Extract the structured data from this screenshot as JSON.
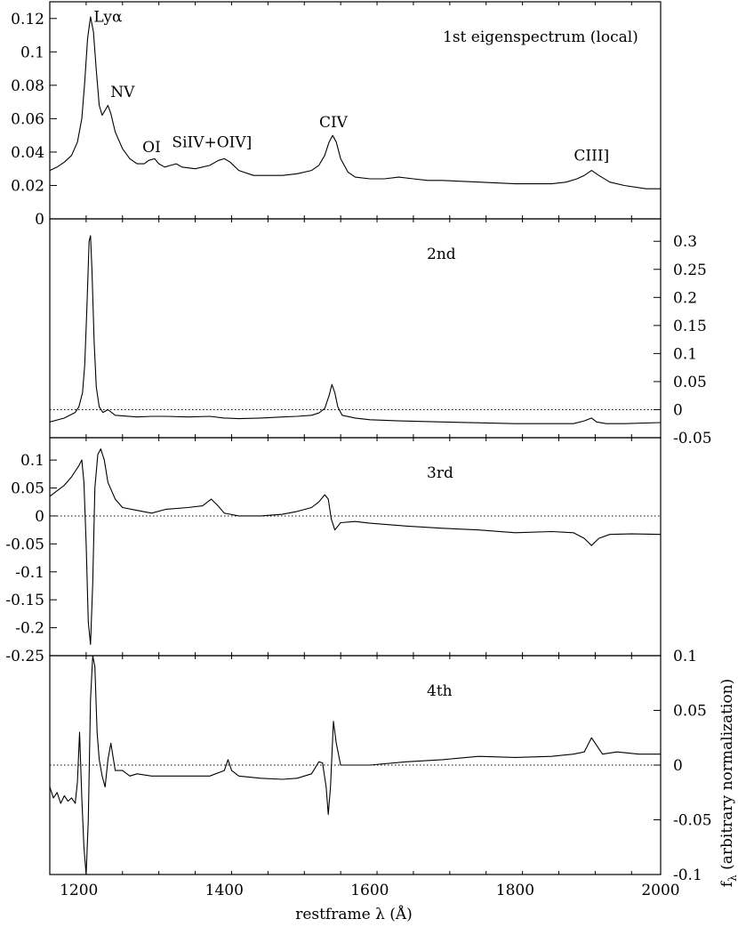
{
  "chart_data": {
    "type": "line",
    "xlabel": "restframe λ (Å)",
    "ylabel": "f",
    "ylabel_subscript": "λ",
    "ylabel_suffix": " (arbitrary normalization)",
    "xlim": [
      1160,
      2000
    ],
    "xticks": [
      {
        "value": 1200,
        "label": "1200"
      },
      {
        "value": 1400,
        "label": "1400"
      },
      {
        "value": 1600,
        "label": "1600"
      },
      {
        "value": 1800,
        "label": "1800"
      },
      {
        "value": 2000,
        "label": "2000"
      }
    ],
    "panels": [
      {
        "label": "1st eigenspectrum (local)",
        "axis_side": "left",
        "ylim": [
          0,
          0.13
        ],
        "zero_line": false,
        "yticks": [
          {
            "value": 0,
            "label": "0"
          },
          {
            "value": 0.02,
            "label": "0.02"
          },
          {
            "value": 0.04,
            "label": "0.04"
          },
          {
            "value": 0.06,
            "label": "0.06"
          },
          {
            "value": 0.08,
            "label": "0.08"
          },
          {
            "value": 0.1,
            "label": "0.1"
          },
          {
            "value": 0.12,
            "label": "0.12"
          }
        ],
        "annotations": [
          {
            "text": "Lyα",
            "x": 1240,
            "y": 0.118
          },
          {
            "text": "NV",
            "x": 1260,
            "y": 0.073
          },
          {
            "text": "OI",
            "x": 1300,
            "y": 0.04
          },
          {
            "text": "SiIV+OIV]",
            "x": 1383,
            "y": 0.043
          },
          {
            "text": "CIV",
            "x": 1550,
            "y": 0.055
          },
          {
            "text": "CIII]",
            "x": 1905,
            "y": 0.035
          }
        ],
        "x": [
          1160,
          1170,
          1180,
          1190,
          1198,
          1204,
          1208,
          1212,
          1216,
          1220,
          1224,
          1228,
          1232,
          1236,
          1240,
          1244,
          1250,
          1260,
          1270,
          1280,
          1290,
          1296,
          1304,
          1310,
          1318,
          1326,
          1334,
          1342,
          1360,
          1380,
          1392,
          1400,
          1408,
          1420,
          1440,
          1460,
          1480,
          1500,
          1520,
          1530,
          1538,
          1544,
          1549,
          1554,
          1560,
          1570,
          1580,
          1600,
          1620,
          1640,
          1660,
          1680,
          1700,
          1750,
          1800,
          1850,
          1870,
          1885,
          1895,
          1905,
          1915,
          1930,
          1950,
          1980,
          2000
        ],
        "values": [
          0.029,
          0.031,
          0.034,
          0.038,
          0.046,
          0.06,
          0.082,
          0.108,
          0.121,
          0.112,
          0.089,
          0.068,
          0.062,
          0.065,
          0.068,
          0.063,
          0.052,
          0.042,
          0.036,
          0.033,
          0.033,
          0.035,
          0.036,
          0.033,
          0.031,
          0.032,
          0.033,
          0.031,
          0.03,
          0.032,
          0.035,
          0.036,
          0.034,
          0.029,
          0.026,
          0.026,
          0.026,
          0.027,
          0.029,
          0.032,
          0.038,
          0.046,
          0.05,
          0.046,
          0.036,
          0.028,
          0.025,
          0.024,
          0.024,
          0.025,
          0.024,
          0.023,
          0.023,
          0.022,
          0.021,
          0.021,
          0.022,
          0.024,
          0.026,
          0.029,
          0.026,
          0.022,
          0.02,
          0.018,
          0.018
        ]
      },
      {
        "label": "2nd",
        "axis_side": "right",
        "ylim": [
          -0.05,
          0.34
        ],
        "zero_line": true,
        "yticks": [
          {
            "value": -0.05,
            "label": "-0.05"
          },
          {
            "value": 0,
            "label": "0"
          },
          {
            "value": 0.05,
            "label": "0.05"
          },
          {
            "value": 0.1,
            "label": "0.1"
          },
          {
            "value": 0.15,
            "label": "0.15"
          },
          {
            "value": 0.2,
            "label": "0.2"
          },
          {
            "value": 0.25,
            "label": "0.25"
          },
          {
            "value": 0.3,
            "label": "0.3"
          }
        ],
        "x": [
          1160,
          1180,
          1195,
          1200,
          1205,
          1208,
          1211,
          1214,
          1216,
          1218,
          1221,
          1224,
          1228,
          1233,
          1240,
          1250,
          1280,
          1300,
          1320,
          1350,
          1380,
          1400,
          1420,
          1450,
          1480,
          1500,
          1520,
          1530,
          1538,
          1544,
          1548,
          1552,
          1556,
          1562,
          1580,
          1600,
          1640,
          1700,
          1800,
          1880,
          1895,
          1905,
          1912,
          1925,
          1950,
          2000
        ],
        "values": [
          -0.022,
          -0.015,
          -0.005,
          0.005,
          0.03,
          0.08,
          0.18,
          0.3,
          0.31,
          0.25,
          0.12,
          0.04,
          0.005,
          -0.005,
          0,
          -0.01,
          -0.013,
          -0.012,
          -0.012,
          -0.013,
          -0.012,
          -0.015,
          -0.016,
          -0.015,
          -0.013,
          -0.012,
          -0.01,
          -0.006,
          0.002,
          0.025,
          0.045,
          0.03,
          0.005,
          -0.01,
          -0.015,
          -0.018,
          -0.02,
          -0.022,
          -0.025,
          -0.025,
          -0.02,
          -0.015,
          -0.022,
          -0.025,
          -0.025,
          -0.023
        ]
      },
      {
        "label": "3rd",
        "axis_side": "left",
        "ylim": [
          -0.25,
          0.14
        ],
        "zero_line": true,
        "yticks": [
          {
            "value": -0.25,
            "label": "-0.25"
          },
          {
            "value": -0.2,
            "label": "-0.2"
          },
          {
            "value": -0.15,
            "label": "-0.15"
          },
          {
            "value": -0.1,
            "label": "-0.1"
          },
          {
            "value": -0.05,
            "label": "-0.05"
          },
          {
            "value": 0,
            "label": "0"
          },
          {
            "value": 0.05,
            "label": "0.05"
          },
          {
            "value": 0.1,
            "label": "0.1"
          }
        ],
        "x": [
          1160,
          1170,
          1180,
          1190,
          1200,
          1204,
          1207,
          1210,
          1213,
          1216,
          1219,
          1222,
          1226,
          1230,
          1235,
          1240,
          1250,
          1260,
          1280,
          1300,
          1320,
          1350,
          1370,
          1382,
          1390,
          1400,
          1420,
          1450,
          1480,
          1500,
          1520,
          1530,
          1538,
          1543,
          1547,
          1552,
          1560,
          1580,
          1600,
          1650,
          1700,
          1750,
          1800,
          1850,
          1880,
          1895,
          1905,
          1915,
          1930,
          1960,
          2000
        ],
        "values": [
          0.035,
          0.045,
          0.055,
          0.07,
          0.09,
          0.1,
          0.06,
          -0.05,
          -0.19,
          -0.23,
          -0.12,
          0.05,
          0.11,
          0.12,
          0.1,
          0.06,
          0.03,
          0.015,
          0.01,
          0.005,
          0.012,
          0.015,
          0.018,
          0.03,
          0.02,
          0.005,
          0,
          0,
          0.003,
          0.008,
          0.015,
          0.025,
          0.038,
          0.03,
          -0.005,
          -0.025,
          -0.012,
          -0.01,
          -0.013,
          -0.018,
          -0.022,
          -0.025,
          -0.03,
          -0.028,
          -0.03,
          -0.04,
          -0.053,
          -0.04,
          -0.033,
          -0.032,
          -0.033
        ]
      },
      {
        "label": "4th",
        "axis_side": "right",
        "ylim": [
          -0.1,
          0.1
        ],
        "zero_line": true,
        "yticks": [
          {
            "value": -0.1,
            "label": "-0.1"
          },
          {
            "value": -0.05,
            "label": "-0.05"
          },
          {
            "value": 0,
            "label": "0"
          },
          {
            "value": 0.05,
            "label": "0.05"
          },
          {
            "value": 0.1,
            "label": "0.1"
          }
        ],
        "x": [
          1160,
          1165,
          1170,
          1175,
          1180,
          1185,
          1190,
          1195,
          1198,
          1201,
          1204,
          1207,
          1210,
          1213,
          1216,
          1219,
          1222,
          1225,
          1228,
          1232,
          1236,
          1240,
          1244,
          1250,
          1260,
          1270,
          1280,
          1300,
          1320,
          1350,
          1380,
          1400,
          1405,
          1410,
          1420,
          1450,
          1480,
          1500,
          1520,
          1530,
          1535,
          1540,
          1543,
          1546,
          1550,
          1554,
          1560,
          1570,
          1600,
          1650,
          1700,
          1750,
          1800,
          1850,
          1880,
          1895,
          1905,
          1910,
          1920,
          1940,
          1970,
          2000
        ],
        "values": [
          -0.02,
          -0.03,
          -0.025,
          -0.035,
          -0.028,
          -0.033,
          -0.03,
          -0.035,
          -0.015,
          0.03,
          -0.03,
          -0.075,
          -0.1,
          -0.05,
          0.06,
          0.1,
          0.09,
          0.03,
          0.005,
          -0.01,
          -0.02,
          0.005,
          0.02,
          -0.005,
          -0.005,
          -0.01,
          -0.008,
          -0.01,
          -0.01,
          -0.01,
          -0.01,
          -0.005,
          0.005,
          -0.005,
          -0.01,
          -0.012,
          -0.013,
          -0.012,
          -0.008,
          0.003,
          0.002,
          -0.02,
          -0.045,
          -0.02,
          0.04,
          0.02,
          0,
          0,
          0,
          0.003,
          0.005,
          0.008,
          0.007,
          0.008,
          0.01,
          0.012,
          0.025,
          0.02,
          0.01,
          0.012,
          0.01,
          0.01
        ]
      }
    ]
  }
}
